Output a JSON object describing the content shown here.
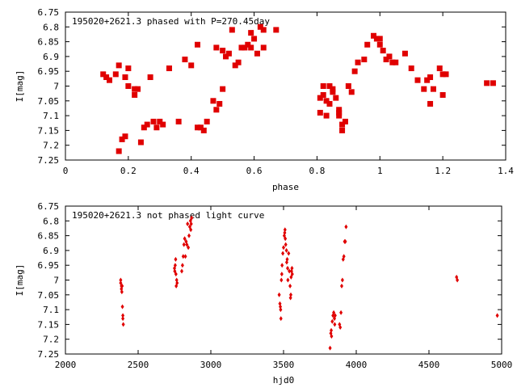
{
  "chart_data": [
    {
      "type": "scatter",
      "title": "195020+2621.3 phased with P=270.45day",
      "xlabel": "phase",
      "ylabel": "I[mag]",
      "xlim": [
        0,
        1.4
      ],
      "ylim": [
        7.25,
        6.75
      ],
      "y_inverted": true,
      "x_ticks": [
        "0",
        "0.2",
        "0.4",
        "0.6",
        "0.8",
        "1",
        "1.2",
        "1.4"
      ],
      "y_ticks": [
        "6.75",
        "6.8",
        "6.85",
        "6.9",
        "6.95",
        "7",
        "7.05",
        "7.1",
        "7.15",
        "7.2",
        "7.25"
      ],
      "grid": false,
      "color": "#e00000",
      "points": [
        [
          0.12,
          6.96
        ],
        [
          0.13,
          6.97
        ],
        [
          0.14,
          6.98
        ],
        [
          0.16,
          6.96
        ],
        [
          0.17,
          6.93
        ],
        [
          0.17,
          7.22
        ],
        [
          0.18,
          7.18
        ],
        [
          0.19,
          7.17
        ],
        [
          0.19,
          6.97
        ],
        [
          0.2,
          6.94
        ],
        [
          0.2,
          7.0
        ],
        [
          0.22,
          7.01
        ],
        [
          0.22,
          7.03
        ],
        [
          0.23,
          7.01
        ],
        [
          0.24,
          7.19
        ],
        [
          0.25,
          7.14
        ],
        [
          0.26,
          7.13
        ],
        [
          0.27,
          6.97
        ],
        [
          0.28,
          7.12
        ],
        [
          0.29,
          7.14
        ],
        [
          0.3,
          7.12
        ],
        [
          0.31,
          7.13
        ],
        [
          0.33,
          6.94
        ],
        [
          0.36,
          7.12
        ],
        [
          0.38,
          6.91
        ],
        [
          0.4,
          6.93
        ],
        [
          0.42,
          6.86
        ],
        [
          0.42,
          7.14
        ],
        [
          0.43,
          7.14
        ],
        [
          0.44,
          7.15
        ],
        [
          0.45,
          7.12
        ],
        [
          0.47,
          7.05
        ],
        [
          0.48,
          6.87
        ],
        [
          0.48,
          7.08
        ],
        [
          0.49,
          7.06
        ],
        [
          0.5,
          6.88
        ],
        [
          0.5,
          7.01
        ],
        [
          0.51,
          6.9
        ],
        [
          0.52,
          6.89
        ],
        [
          0.53,
          6.81
        ],
        [
          0.54,
          6.93
        ],
        [
          0.55,
          6.92
        ],
        [
          0.56,
          6.87
        ],
        [
          0.57,
          6.87
        ],
        [
          0.58,
          6.86
        ],
        [
          0.59,
          6.87
        ],
        [
          0.59,
          6.82
        ],
        [
          0.6,
          6.84
        ],
        [
          0.61,
          6.89
        ],
        [
          0.62,
          6.8
        ],
        [
          0.63,
          6.81
        ],
        [
          0.63,
          6.87
        ],
        [
          0.67,
          6.81
        ],
        [
          0.81,
          7.09
        ],
        [
          0.81,
          7.04
        ],
        [
          0.82,
          7.0
        ],
        [
          0.82,
          7.03
        ],
        [
          0.83,
          7.05
        ],
        [
          0.83,
          7.1
        ],
        [
          0.84,
          7.0
        ],
        [
          0.84,
          7.06
        ],
        [
          0.85,
          7.01
        ],
        [
          0.85,
          7.02
        ],
        [
          0.86,
          7.04
        ],
        [
          0.87,
          7.08
        ],
        [
          0.87,
          7.09
        ],
        [
          0.87,
          7.1
        ],
        [
          0.88,
          7.13
        ],
        [
          0.88,
          7.15
        ],
        [
          0.89,
          7.12
        ],
        [
          0.9,
          7.0
        ],
        [
          0.91,
          7.02
        ],
        [
          0.92,
          6.95
        ],
        [
          0.93,
          6.92
        ],
        [
          0.95,
          6.91
        ],
        [
          0.96,
          6.86
        ],
        [
          0.98,
          6.83
        ],
        [
          0.99,
          6.84
        ],
        [
          1.0,
          6.84
        ],
        [
          1.0,
          6.86
        ],
        [
          1.01,
          6.88
        ],
        [
          1.02,
          6.91
        ],
        [
          1.03,
          6.9
        ],
        [
          1.04,
          6.92
        ],
        [
          1.05,
          6.92
        ],
        [
          1.08,
          6.89
        ],
        [
          1.1,
          6.94
        ],
        [
          1.12,
          6.98
        ],
        [
          1.14,
          7.01
        ],
        [
          1.15,
          6.98
        ],
        [
          1.16,
          6.97
        ],
        [
          1.16,
          7.06
        ],
        [
          1.17,
          7.01
        ],
        [
          1.19,
          6.94
        ],
        [
          1.2,
          7.03
        ],
        [
          1.2,
          6.96
        ],
        [
          1.21,
          6.96
        ],
        [
          1.34,
          6.99
        ],
        [
          1.36,
          6.99
        ]
      ]
    },
    {
      "type": "scatter",
      "title": "195020+2621.3 not phased light curve",
      "xlabel": "hjd0",
      "ylabel": "I[mag]",
      "xlim": [
        2000,
        5000
      ],
      "ylim": [
        7.25,
        6.75
      ],
      "y_inverted": true,
      "x_ticks": [
        "2000",
        "2500",
        "3000",
        "3500",
        "4000",
        "4500",
        "5000"
      ],
      "y_ticks": [
        "6.75",
        "6.8",
        "6.85",
        "6.9",
        "6.95",
        "7",
        "7.05",
        "7.1",
        "7.15",
        "7.2",
        "7.25"
      ],
      "grid": false,
      "color": "#e00000",
      "points": [
        [
          2380,
          7.0
        ],
        [
          2380,
          7.01
        ],
        [
          2385,
          7.02
        ],
        [
          2385,
          7.03
        ],
        [
          2388,
          7.04
        ],
        [
          2390,
          7.02
        ],
        [
          2392,
          7.09
        ],
        [
          2395,
          7.12
        ],
        [
          2395,
          7.13
        ],
        [
          2398,
          7.15
        ],
        [
          2750,
          6.96
        ],
        [
          2752,
          6.97
        ],
        [
          2755,
          6.95
        ],
        [
          2758,
          6.93
        ],
        [
          2760,
          6.98
        ],
        [
          2762,
          7.02
        ],
        [
          2765,
          7.0
        ],
        [
          2768,
          7.01
        ],
        [
          2800,
          6.97
        ],
        [
          2805,
          6.95
        ],
        [
          2810,
          6.92
        ],
        [
          2815,
          6.88
        ],
        [
          2820,
          6.86
        ],
        [
          2825,
          6.92
        ],
        [
          2830,
          6.87
        ],
        [
          2835,
          6.88
        ],
        [
          2840,
          6.81
        ],
        [
          2845,
          6.89
        ],
        [
          2850,
          6.85
        ],
        [
          2855,
          6.82
        ],
        [
          2860,
          6.8
        ],
        [
          2862,
          6.83
        ],
        [
          2865,
          6.81
        ],
        [
          2868,
          6.79
        ],
        [
          3470,
          7.05
        ],
        [
          3475,
          7.08
        ],
        [
          3478,
          7.09
        ],
        [
          3480,
          7.1
        ],
        [
          3482,
          7.13
        ],
        [
          3485,
          7.0
        ],
        [
          3488,
          6.98
        ],
        [
          3490,
          6.95
        ],
        [
          3495,
          6.91
        ],
        [
          3500,
          6.89
        ],
        [
          3505,
          6.85
        ],
        [
          3508,
          6.84
        ],
        [
          3510,
          6.83
        ],
        [
          3512,
          6.86
        ],
        [
          3515,
          6.88
        ],
        [
          3520,
          6.9
        ],
        [
          3522,
          6.94
        ],
        [
          3525,
          6.93
        ],
        [
          3528,
          6.96
        ],
        [
          3530,
          7.0
        ],
        [
          3535,
          6.91
        ],
        [
          3540,
          6.97
        ],
        [
          3545,
          7.02
        ],
        [
          3548,
          7.06
        ],
        [
          3550,
          7.05
        ],
        [
          3552,
          6.99
        ],
        [
          3555,
          6.97
        ],
        [
          3558,
          6.96
        ],
        [
          3560,
          6.98
        ],
        [
          3820,
          7.23
        ],
        [
          3825,
          7.18
        ],
        [
          3828,
          7.17
        ],
        [
          3830,
          7.19
        ],
        [
          3835,
          7.14
        ],
        [
          3840,
          7.12
        ],
        [
          3845,
          7.11
        ],
        [
          3850,
          7.13
        ],
        [
          3852,
          7.15
        ],
        [
          3855,
          7.12
        ],
        [
          3885,
          7.15
        ],
        [
          3890,
          7.16
        ],
        [
          3895,
          7.11
        ],
        [
          3900,
          7.02
        ],
        [
          3905,
          7.0
        ],
        [
          3910,
          6.93
        ],
        [
          3915,
          6.92
        ],
        [
          3920,
          6.87
        ],
        [
          3925,
          6.87
        ],
        [
          3930,
          6.82
        ],
        [
          4690,
          6.99
        ],
        [
          4695,
          7.0
        ],
        [
          4970,
          7.12
        ]
      ]
    }
  ]
}
